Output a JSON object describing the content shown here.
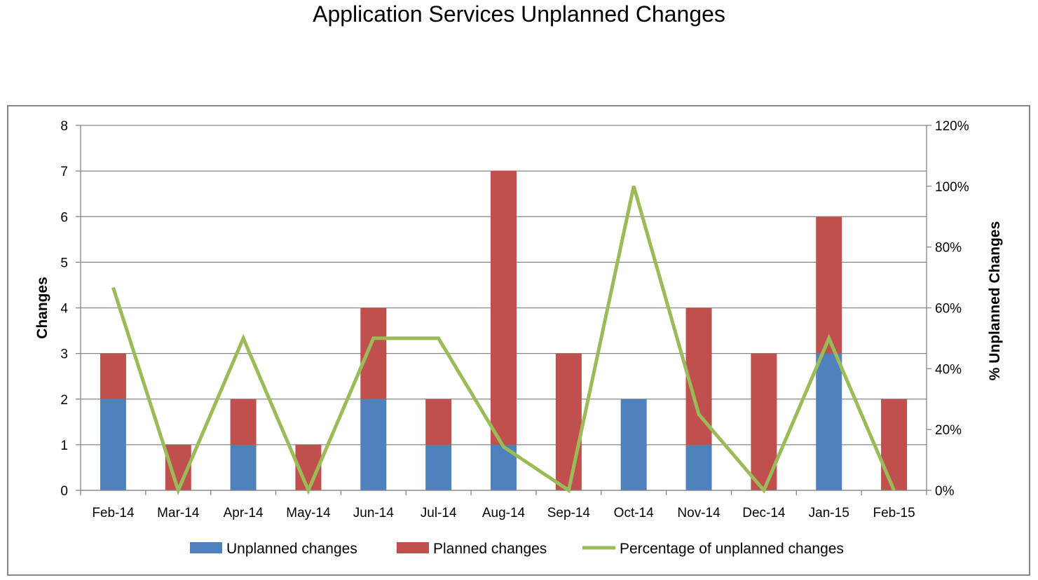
{
  "chart_data": {
    "type": "bar",
    "title": "Application Services Unplanned Changes",
    "categories": [
      "Feb-14",
      "Mar-14",
      "Apr-14",
      "May-14",
      "Jun-14",
      "Jul-14",
      "Aug-14",
      "Sep-14",
      "Oct-14",
      "Nov-14",
      "Dec-14",
      "Jan-15",
      "Feb-15"
    ],
    "series": [
      {
        "name": "Unplanned changes",
        "kind": "stacked-bar",
        "axis": "left",
        "color": "#4F81BD",
        "values": [
          2,
          0,
          1,
          0,
          2,
          1,
          1,
          0,
          2,
          1,
          0,
          3,
          0
        ]
      },
      {
        "name": "Planned changes",
        "kind": "stacked-bar",
        "axis": "left",
        "color": "#C0504D",
        "values": [
          1,
          1,
          1,
          1,
          2,
          1,
          6,
          3,
          0,
          3,
          3,
          3,
          2
        ]
      },
      {
        "name": "Percentage of unplanned changes",
        "kind": "line",
        "axis": "right",
        "color": "#9BBB59",
        "values": [
          0.667,
          0,
          0.5,
          0,
          0.5,
          0.5,
          0.143,
          0,
          1.0,
          0.25,
          0,
          0.5,
          0
        ]
      }
    ],
    "ylabel": "Changes",
    "ylim": [
      0,
      8
    ],
    "yticks": [
      "0",
      "1",
      "2",
      "3",
      "4",
      "5",
      "6",
      "7",
      "8"
    ],
    "y2label": "% Unplanned Changes",
    "y2lim": [
      0,
      1.2
    ],
    "y2ticks": [
      "0%",
      "20%",
      "40%",
      "60%",
      "80%",
      "100%",
      "120%"
    ],
    "grid": true,
    "legend": "bottom"
  }
}
